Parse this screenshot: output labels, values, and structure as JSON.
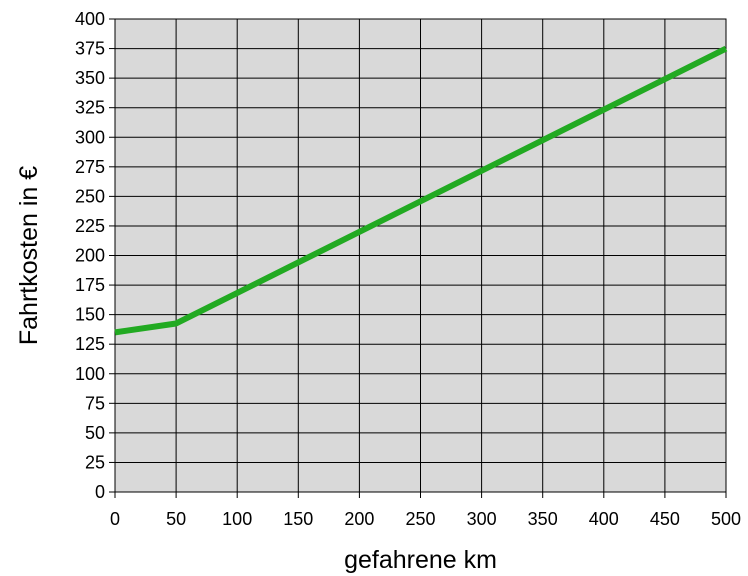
{
  "chart_data": {
    "type": "line",
    "title": "",
    "xlabel": "gefahrene km",
    "ylabel": "Fahrtkosten in €",
    "xlim": [
      0,
      500
    ],
    "ylim": [
      0,
      400
    ],
    "x_ticks": [
      0,
      50,
      100,
      150,
      200,
      250,
      300,
      350,
      400,
      450,
      500
    ],
    "y_ticks": [
      0,
      25,
      50,
      75,
      100,
      125,
      150,
      175,
      200,
      225,
      250,
      275,
      300,
      325,
      350,
      375,
      400
    ],
    "grid": true,
    "legend": "none",
    "series": [
      {
        "color": "#22aa22",
        "x": [
          0,
          50,
          500
        ],
        "y": [
          135,
          142.5,
          375
        ]
      }
    ],
    "colors": {
      "plot_background": "#d9d9d9",
      "grid": "#000000",
      "line": "#22aa22"
    }
  }
}
